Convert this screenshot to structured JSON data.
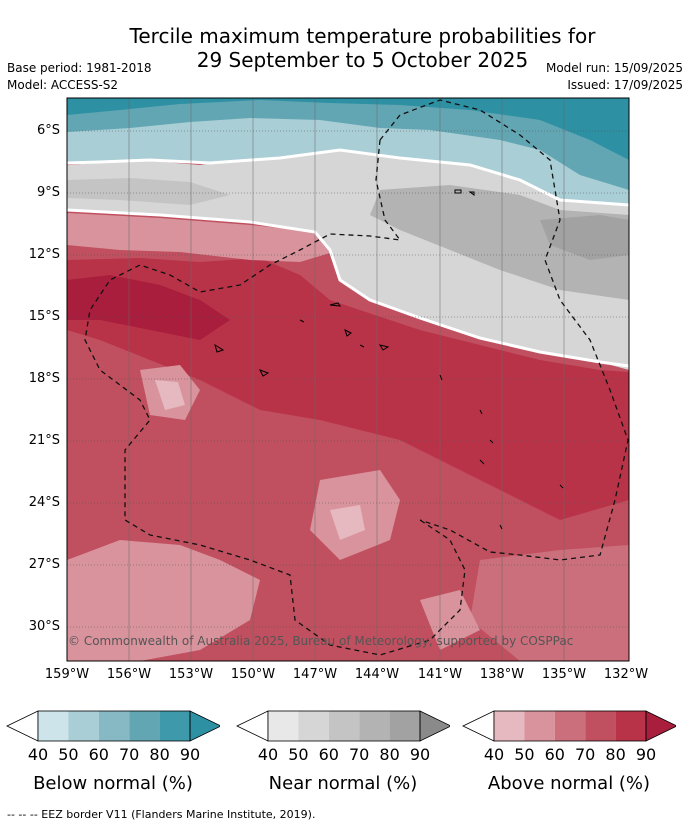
{
  "title": {
    "line1": "Tercile maximum temperature probabilities for",
    "line2": "29 September to 5 October 2025"
  },
  "meta": {
    "base_period": "Base period: 1981-2018",
    "model": "Model: ACCESS-S2",
    "model_run": "Model run: 15/09/2025",
    "issued": "Issued: 17/09/2025"
  },
  "map": {
    "lat_labels": [
      "6°S",
      "9°S",
      "12°S",
      "15°S",
      "18°S",
      "21°S",
      "24°S",
      "27°S",
      "30°S"
    ],
    "lon_labels": [
      "159°W",
      "156°W",
      "153°W",
      "150°W",
      "147°W",
      "144°W",
      "141°W",
      "138°W",
      "135°W",
      "132°W"
    ],
    "copyright": "© Commonwealth of Australia 2025, Bureau of Meteorology, supported by COSPPac"
  },
  "legend": {
    "ticks": [
      "40",
      "50",
      "60",
      "70",
      "80",
      "90"
    ],
    "below": {
      "label": "Below normal (%)",
      "colors": [
        "#ffffff",
        "#cce4ea",
        "#a9ced6",
        "#86b9c4",
        "#62a6b3",
        "#3e9aab",
        "#2d90a3"
      ]
    },
    "near": {
      "label": "Near normal (%)",
      "colors": [
        "#ffffff",
        "#e8e8e8",
        "#d6d6d6",
        "#c4c4c4",
        "#b3b3b3",
        "#a2a2a2",
        "#8a8a8a"
      ]
    },
    "above": {
      "label": "Above normal (%)",
      "colors": [
        "#ffffff",
        "#e6b8bf",
        "#d9939d",
        "#cc6f7c",
        "#c0505f",
        "#b83348",
        "#a81e3c"
      ]
    }
  },
  "footer": "--  --  -- EEZ border V11 (Flanders Marine Institute, 2019)."
}
